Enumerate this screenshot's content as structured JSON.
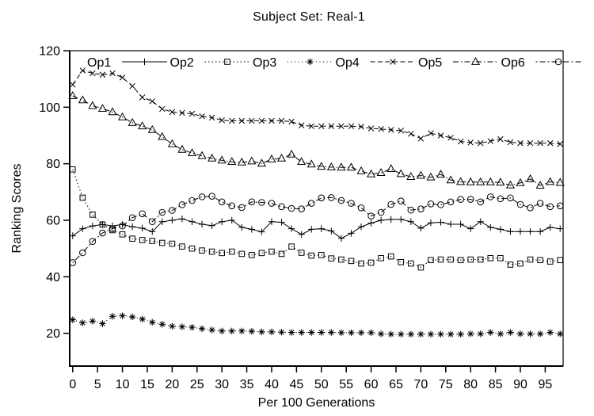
{
  "figure": {
    "background": "#ffffff",
    "foreground": "#000000"
  },
  "chart_data": {
    "type": "line",
    "title": "Subject Set: Real-1",
    "xlabel": "Per 100 Generations",
    "ylabel": "Ranking Scores",
    "xlim": [
      -0.6,
      98.6
    ],
    "ylim": [
      8.4,
      120
    ],
    "xticks": [
      0,
      5,
      10,
      15,
      20,
      25,
      30,
      35,
      40,
      45,
      50,
      55,
      60,
      65,
      70,
      75,
      80,
      85,
      90,
      95
    ],
    "yticks": [
      20,
      40,
      60,
      80,
      100,
      120
    ],
    "grid": false,
    "legend_position": "top inside, horizontal row",
    "x": [
      0,
      2,
      4,
      6,
      8,
      10,
      12,
      14,
      16,
      18,
      20,
      22,
      24,
      26,
      28,
      30,
      32,
      34,
      36,
      38,
      40,
      42,
      44,
      46,
      48,
      50,
      52,
      54,
      56,
      58,
      60,
      62,
      64,
      66,
      68,
      70,
      72,
      74,
      76,
      78,
      80,
      82,
      84,
      86,
      88,
      90,
      92,
      94,
      96,
      98
    ],
    "series": [
      {
        "name": "Op1",
        "marker": "plus",
        "dash": "solid",
        "values": [
          54.5,
          57,
          58,
          58.5,
          58,
          58.5,
          57.7,
          57.2,
          56,
          59.5,
          60,
          60.5,
          59.5,
          58.6,
          58.1,
          59.5,
          60,
          57.5,
          56.8,
          55.9,
          59.5,
          59.3,
          57,
          55,
          56.8,
          57,
          56.2,
          53.6,
          55.4,
          57.7,
          59,
          60,
          60.3,
          60.3,
          59.5,
          57.2,
          59.1,
          59.3,
          58.6,
          58.6,
          57,
          59.5,
          57.5,
          56.8,
          56,
          56,
          56,
          56,
          57.5,
          57
        ]
      },
      {
        "name": "Op2",
        "marker": "square",
        "dash": "dotted",
        "values": [
          78,
          68,
          62,
          58.5,
          56.5,
          55,
          53.5,
          53,
          52.7,
          52,
          51.7,
          50.7,
          50,
          49.3,
          48.9,
          48.4,
          48.9,
          48.1,
          47.7,
          48.4,
          48.9,
          48.1,
          50.7,
          48.5,
          47.5,
          47.7,
          46.5,
          46.1,
          45.6,
          44.7,
          45,
          46.6,
          47.2,
          45.2,
          44.7,
          43.3,
          45.9,
          46.1,
          46.1,
          45.9,
          46.1,
          46.1,
          46.6,
          46.6,
          44.3,
          44.7,
          46.1,
          45.9,
          45.4,
          45.9
        ]
      },
      {
        "name": "Op3",
        "marker": "asterisk",
        "dash": "finedot",
        "values": [
          24.8,
          23.7,
          24.3,
          23.4,
          26,
          26.2,
          25.8,
          25,
          23.9,
          23.2,
          22.5,
          22.3,
          22.1,
          21.6,
          21.2,
          20.8,
          20.8,
          20.8,
          20.7,
          20.5,
          20.5,
          20.4,
          20.3,
          20.3,
          20.3,
          20.3,
          20.3,
          20.2,
          20.2,
          20.2,
          20.2,
          19.8,
          19.7,
          19.7,
          19.7,
          19.7,
          19.7,
          19.7,
          19.7,
          19.7,
          19.8,
          19.8,
          20.3,
          19.8,
          20.3,
          19.8,
          19.8,
          19.8,
          20.3,
          19.8
        ]
      },
      {
        "name": "Op4",
        "marker": "cross",
        "dash": "dashed",
        "values": [
          108,
          113,
          112,
          111.5,
          112,
          110.5,
          107.5,
          103.5,
          102.1,
          99.4,
          98.3,
          98,
          97.7,
          96.8,
          96.3,
          95.4,
          95.2,
          95.2,
          95.2,
          95.2,
          95.2,
          95.2,
          94.9,
          93.6,
          93.3,
          93.3,
          93.3,
          93.3,
          93.3,
          93.1,
          92.5,
          92.3,
          92,
          91.7,
          90.6,
          88.9,
          90.8,
          90,
          89.2,
          87.9,
          87.5,
          87.3,
          88,
          88.7,
          87.6,
          87.3,
          87.3,
          87.3,
          87.3,
          87
        ]
      },
      {
        "name": "Op5",
        "marker": "triangle",
        "dash": "dashdot",
        "values": [
          104,
          102.5,
          100.5,
          99.5,
          98.3,
          96.5,
          94.5,
          93.3,
          92,
          89.5,
          87,
          85,
          83.8,
          82.8,
          81.9,
          81.2,
          80.7,
          80.5,
          80.9,
          80.1,
          81.6,
          81.9,
          83.3,
          80.7,
          79.8,
          79,
          78.8,
          78.7,
          78.7,
          77.4,
          76.3,
          76.8,
          78.2,
          76.4,
          75.4,
          75.8,
          75.2,
          76.2,
          74.2,
          73.6,
          73.5,
          73.5,
          73.5,
          73.4,
          72.4,
          73.2,
          74.6,
          72.3,
          73.6,
          73.3
        ]
      },
      {
        "name": "Op6",
        "marker": "circle",
        "dash": "dashdotdot",
        "values": [
          45,
          48.5,
          52.5,
          55.5,
          57,
          58,
          60.9,
          62.3,
          59.5,
          62.8,
          63.5,
          65.5,
          67,
          68.3,
          68.5,
          66.5,
          65.1,
          64.5,
          66.5,
          66.3,
          66,
          64.8,
          64.2,
          64,
          66,
          67.9,
          68,
          67,
          66,
          64.4,
          61.5,
          62.8,
          65.6,
          66.8,
          63.6,
          64,
          65.8,
          65.5,
          66.5,
          67.4,
          67.4,
          66.5,
          68.3,
          67.6,
          67.9,
          65.6,
          64.4,
          66,
          64.8,
          65.1
        ]
      }
    ]
  }
}
